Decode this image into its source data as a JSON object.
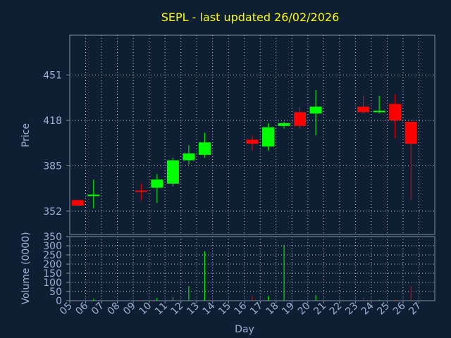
{
  "title": "SEPL - last updated 26/02/2026",
  "colors": {
    "background": "#0f1f33",
    "title": "#ffff00",
    "axis_text": "#9cb0d4",
    "axis_line": "#7f8fa6",
    "grid": "#b8c4d8",
    "up": "#00ff00",
    "down": "#ff0000"
  },
  "chart_data": [
    {
      "type": "candlestick",
      "title": "SEPL - last updated 26/02/2026",
      "ylabel": "Price",
      "ylim": [
        335,
        480
      ],
      "yticks": [
        352,
        385,
        418,
        451
      ],
      "grid": true,
      "candles": [
        {
          "day": "05",
          "open": 360,
          "high": 360,
          "low": 356,
          "close": 356
        },
        {
          "day": "06",
          "open": 363,
          "high": 375,
          "low": 354,
          "close": 364
        },
        {
          "day": "09",
          "open": 367,
          "high": 372,
          "low": 360,
          "close": 366
        },
        {
          "day": "10",
          "open": 369,
          "high": 379,
          "low": 358,
          "close": 375
        },
        {
          "day": "11",
          "open": 372,
          "high": 391,
          "low": 370,
          "close": 389
        },
        {
          "day": "12",
          "open": 389,
          "high": 400,
          "low": 386,
          "close": 394
        },
        {
          "day": "13",
          "open": 393,
          "high": 409,
          "low": 391,
          "close": 402
        },
        {
          "day": "16",
          "open": 404,
          "high": 407,
          "low": 396,
          "close": 401
        },
        {
          "day": "17",
          "open": 399,
          "high": 416,
          "low": 396,
          "close": 413
        },
        {
          "day": "18",
          "open": 414,
          "high": 417,
          "low": 412,
          "close": 416
        },
        {
          "day": "19",
          "open": 424,
          "high": 428,
          "low": 412,
          "close": 414
        },
        {
          "day": "20",
          "open": 423,
          "high": 440,
          "low": 407,
          "close": 428
        },
        {
          "day": "23",
          "open": 428,
          "high": 436,
          "low": 423,
          "close": 424
        },
        {
          "day": "24",
          "open": 424,
          "high": 436,
          "low": 423,
          "close": 425
        },
        {
          "day": "25",
          "open": 430,
          "high": 437,
          "low": 405,
          "close": 418
        },
        {
          "day": "26",
          "open": 417,
          "high": 417,
          "low": 360,
          "close": 401
        }
      ]
    },
    {
      "type": "bar",
      "xlabel": "Day",
      "ylabel": "Volume (0000)",
      "ylim": [
        0,
        350
      ],
      "yticks": [
        0,
        50,
        100,
        150,
        200,
        250,
        300,
        350
      ],
      "grid": true,
      "categories": [
        "05",
        "06",
        "07",
        "08",
        "09",
        "10",
        "11",
        "12",
        "13",
        "14",
        "15",
        "16",
        "17",
        "18",
        "19",
        "20",
        "21",
        "22",
        "23",
        "24",
        "25",
        "26",
        "27"
      ],
      "values": [
        2,
        10,
        0,
        0,
        3,
        15,
        20,
        80,
        270,
        0,
        0,
        25,
        25,
        305,
        5,
        30,
        0,
        0,
        15,
        5,
        5,
        80,
        0
      ],
      "bar_colors": [
        "down",
        "up",
        "up",
        "up",
        "down",
        "up",
        "up",
        "up",
        "up",
        "up",
        "up",
        "down",
        "up",
        "up",
        "down",
        "up",
        "up",
        "up",
        "down",
        "up",
        "down",
        "down",
        "up"
      ]
    }
  ]
}
